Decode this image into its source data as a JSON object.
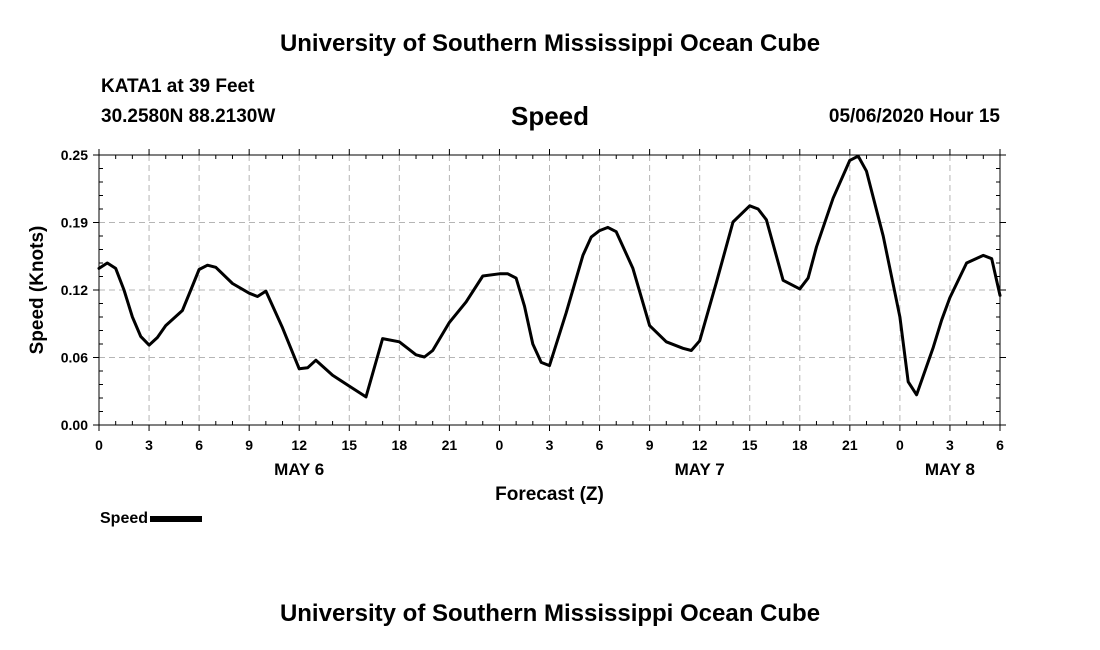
{
  "header": {
    "title": "University of Southern Mississippi Ocean Cube",
    "station": "KATA1 at 39 Feet",
    "coords": "30.2580N 88.2130W",
    "datetime": "05/06/2020 Hour 15"
  },
  "footer": {
    "title": "University of Southern Mississippi Ocean Cube"
  },
  "chart_data": {
    "type": "line",
    "title": "Speed",
    "xlabel": "Forecast (Z)",
    "ylabel": "Speed (Knots)",
    "ylim": [
      0,
      0.25
    ],
    "yticks": [
      "0.00",
      "0.06",
      "0.12",
      "0.19",
      "0.25"
    ],
    "xlim": [
      0,
      54
    ],
    "xticks": [
      "0",
      "3",
      "6",
      "9",
      "12",
      "15",
      "18",
      "21",
      "0",
      "3",
      "6",
      "9",
      "12",
      "15",
      "18",
      "21",
      "0",
      "3",
      "6"
    ],
    "day_labels": [
      {
        "label": "MAY 6",
        "hour": 12
      },
      {
        "label": "MAY 7",
        "hour": 36
      },
      {
        "label": "MAY 8",
        "hour": 51
      }
    ],
    "grid": true,
    "legend": {
      "placement": "bottom-left",
      "label": "Speed"
    },
    "color": "#000000",
    "series": [
      {
        "name": "Speed",
        "x": [
          0,
          0.5,
          1,
          1.5,
          2,
          2.5,
          3,
          3.5,
          4,
          5,
          5.5,
          6,
          6.5,
          7,
          8,
          9,
          9.5,
          10,
          11,
          12,
          12.5,
          13,
          14,
          15,
          16,
          17,
          18,
          18.5,
          19,
          19.5,
          20,
          21,
          22,
          23,
          24,
          24.5,
          25,
          25.5,
          26,
          26.5,
          27,
          28,
          29,
          29.5,
          30,
          30.5,
          31,
          32,
          33,
          34,
          35,
          35.5,
          36,
          37,
          38,
          39,
          39.5,
          40,
          41,
          42,
          42.5,
          43,
          44,
          45,
          45.5,
          46,
          47,
          48,
          48.5,
          49,
          50,
          50.5,
          51,
          52,
          53,
          53.5,
          54
        ],
        "y": [
          0.145,
          0.15,
          0.145,
          0.125,
          0.1,
          0.082,
          0.074,
          0.081,
          0.092,
          0.106,
          0.125,
          0.144,
          0.148,
          0.146,
          0.131,
          0.122,
          0.119,
          0.124,
          0.09,
          0.052,
          0.053,
          0.06,
          0.046,
          0.036,
          0.026,
          0.08,
          0.077,
          0.071,
          0.065,
          0.063,
          0.069,
          0.095,
          0.114,
          0.138,
          0.14,
          0.14,
          0.136,
          0.11,
          0.075,
          0.058,
          0.055,
          0.104,
          0.157,
          0.174,
          0.18,
          0.183,
          0.179,
          0.145,
          0.092,
          0.077,
          0.071,
          0.069,
          0.078,
          0.132,
          0.188,
          0.203,
          0.2,
          0.19,
          0.134,
          0.126,
          0.136,
          0.165,
          0.21,
          0.245,
          0.249,
          0.235,
          0.175,
          0.1,
          0.04,
          0.028,
          0.072,
          0.097,
          0.118,
          0.15,
          0.157,
          0.154,
          0.12
        ]
      }
    ]
  }
}
